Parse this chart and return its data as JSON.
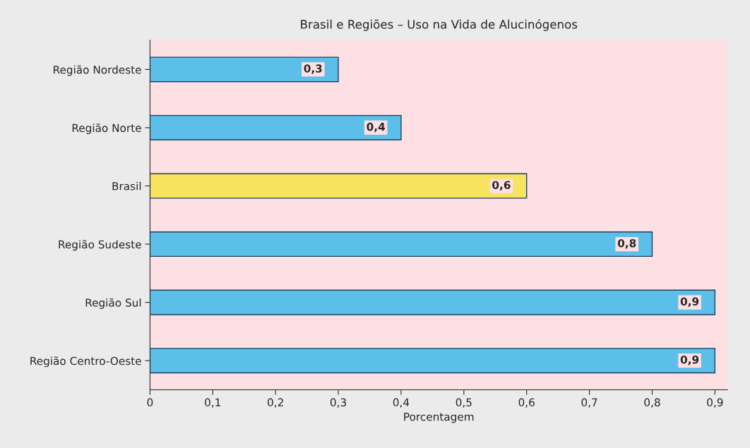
{
  "chart_data": {
    "type": "bar",
    "orientation": "horizontal",
    "title": "Brasil e Regiões – Uso na Vida de Alucinógenos",
    "xlabel": "Porcentagem",
    "categories": [
      "Região Nordeste",
      "Região Norte",
      "Brasil",
      "Região Sudeste",
      "Região Sul",
      "Região Centro-Oeste"
    ],
    "values": [
      0.3,
      0.4,
      0.6,
      0.8,
      0.9,
      0.9
    ],
    "colors": [
      "#5cbfea",
      "#5cbfea",
      "#f7e35e",
      "#5cbfea",
      "#5cbfea",
      "#5cbfea"
    ],
    "value_labels": [
      "0,3",
      "0,4",
      "0,6",
      "0,8",
      "0,9",
      "0,9"
    ],
    "xlim": [
      0,
      0.92
    ],
    "xticks": [
      0,
      {
        "value": 0.1,
        "label": "0,1"
      },
      {
        "value": 0.2,
        "label": "0,2"
      },
      {
        "value": 0.3,
        "label": "0,3"
      },
      {
        "value": 0.4,
        "label": "0,4"
      },
      {
        "value": 0.5,
        "label": "0,5"
      },
      {
        "value": 0.6,
        "label": "0,6"
      },
      {
        "value": 0.7,
        "label": "0,7"
      },
      {
        "value": 0.8,
        "label": "0,8"
      },
      {
        "value": 0.9,
        "label": "0,9"
      }
    ],
    "grid": false,
    "legend": false
  }
}
